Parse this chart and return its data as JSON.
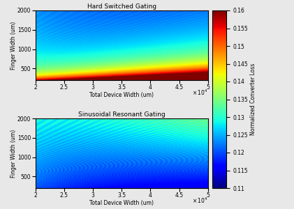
{
  "title_top": "Hard Switched Gating",
  "title_bottom": "Sinusoidal Resonant Gating",
  "xlabel": "Total Device Width (um)",
  "ylabel": "Finger Width (um)",
  "colorbar_label": "Normalized Converter Loss",
  "xlim": [
    20000,
    50000
  ],
  "ylim": [
    200,
    2000
  ],
  "vmin": 0.11,
  "vmax": 0.16,
  "xticks": [
    20000,
    25000,
    30000,
    35000,
    40000,
    45000,
    50000
  ],
  "xtick_labels": [
    "2",
    "2.5",
    "3",
    "3.5",
    "4",
    "4.5",
    "5"
  ],
  "yticks": [
    500,
    1000,
    1500,
    2000
  ],
  "colorbar_ticks": [
    0.11,
    0.115,
    0.12,
    0.125,
    0.13,
    0.135,
    0.14,
    0.145,
    0.15,
    0.155,
    0.16
  ],
  "nx": 400,
  "ny": 300
}
